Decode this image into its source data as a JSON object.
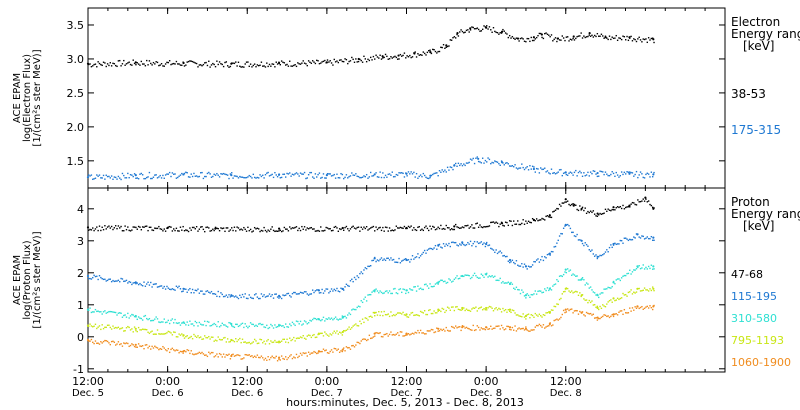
{
  "chart_data": [
    {
      "type": "scatter",
      "panel": "electron",
      "ylabel_lines": [
        "ACE EPAM",
        "log(Electron Flux)",
        "[1/(cm²s ster MeV)]"
      ],
      "ylim": [
        1.1,
        3.75
      ],
      "yticks": [
        "1.5",
        "2.0",
        "2.5",
        "3.0",
        "3.5"
      ],
      "ytick_values": [
        1.5,
        2.0,
        2.5,
        3.0,
        3.5
      ],
      "legend_title_lines": [
        "Electron",
        "Energy range",
        "[keV]"
      ],
      "series": [
        {
          "name": "38-53",
          "color": "#000000",
          "x": [
            0.0,
            0.3,
            0.6,
            0.9,
            1.2,
            1.5,
            1.7,
            1.85,
            1.95,
            2.05,
            2.15,
            2.25,
            2.32,
            2.4,
            2.5,
            2.6,
            2.7,
            2.8,
            2.85,
            2.95,
            3.05,
            3.15,
            3.25,
            3.4,
            3.55
          ],
          "y": [
            2.93,
            2.95,
            2.94,
            2.93,
            2.94,
            2.95,
            3.0,
            3.04,
            3.05,
            3.08,
            3.1,
            3.2,
            3.38,
            3.45,
            3.46,
            3.4,
            3.3,
            3.32,
            3.36,
            3.3,
            3.33,
            3.38,
            3.32,
            3.32,
            3.29
          ]
        },
        {
          "name": "175-315",
          "color": "#1e78d2",
          "x": [
            0.0,
            0.3,
            0.6,
            0.9,
            1.2,
            1.5,
            1.8,
            2.0,
            2.15,
            2.3,
            2.45,
            2.6,
            2.8,
            3.0,
            3.2,
            3.4,
            3.55
          ],
          "y": [
            1.26,
            1.29,
            1.3,
            1.29,
            1.3,
            1.29,
            1.3,
            1.31,
            1.28,
            1.43,
            1.53,
            1.48,
            1.38,
            1.33,
            1.32,
            1.31,
            1.3
          ]
        }
      ]
    },
    {
      "type": "scatter",
      "panel": "proton",
      "ylabel_lines": [
        "ACE EPAM",
        "log(Proton Flux)",
        "[1/(cm²s ster MeV)]"
      ],
      "ylim": [
        -1.1,
        4.65
      ],
      "yticks": [
        "-1",
        "0",
        "1",
        "2",
        "3",
        "4"
      ],
      "ytick_values": [
        -1,
        0,
        1,
        2,
        3,
        4
      ],
      "legend_title_lines": [
        "Proton",
        "Energy range",
        "[keV]"
      ],
      "series": [
        {
          "name": "47-68",
          "color": "#000000",
          "x": [
            0.0,
            0.5,
            0.8,
            1.2,
            1.6,
            2.0,
            2.3,
            2.6,
            2.8,
            2.9,
            3.0,
            3.05,
            3.1,
            3.2,
            3.3,
            3.4,
            3.5,
            3.55
          ],
          "y": [
            3.42,
            3.4,
            3.38,
            3.38,
            3.4,
            3.4,
            3.45,
            3.55,
            3.65,
            3.8,
            4.3,
            4.1,
            4.0,
            3.85,
            4.05,
            4.1,
            4.35,
            4.0
          ]
        },
        {
          "name": "115-195",
          "color": "#1e78d2",
          "x": [
            0.0,
            0.3,
            0.6,
            0.9,
            1.2,
            1.45,
            1.6,
            1.8,
            2.0,
            2.2,
            2.35,
            2.5,
            2.65,
            2.75,
            2.9,
            3.0,
            3.1,
            3.2,
            3.3,
            3.45,
            3.55
          ],
          "y": [
            1.9,
            1.7,
            1.5,
            1.3,
            1.28,
            1.45,
            1.5,
            2.45,
            2.4,
            2.85,
            2.95,
            2.9,
            2.4,
            2.2,
            2.6,
            3.5,
            3.0,
            2.5,
            2.9,
            3.2,
            3.1
          ]
        },
        {
          "name": "310-580",
          "color": "#2ee0d2",
          "x": [
            0.0,
            0.3,
            0.6,
            0.9,
            1.2,
            1.45,
            1.6,
            1.8,
            2.0,
            2.2,
            2.35,
            2.5,
            2.65,
            2.75,
            2.9,
            3.0,
            3.1,
            3.2,
            3.3,
            3.45,
            3.55
          ],
          "y": [
            0.85,
            0.65,
            0.45,
            0.4,
            0.35,
            0.55,
            0.6,
            1.45,
            1.45,
            1.7,
            1.9,
            1.95,
            1.65,
            1.3,
            1.5,
            2.1,
            1.8,
            1.3,
            1.7,
            2.2,
            2.2
          ]
        },
        {
          "name": "795-1193",
          "color": "#c8e614",
          "x": [
            0.0,
            0.3,
            0.6,
            0.9,
            1.2,
            1.45,
            1.6,
            1.8,
            2.0,
            2.2,
            2.35,
            2.5,
            2.65,
            2.75,
            2.9,
            3.0,
            3.1,
            3.2,
            3.3,
            3.45,
            3.55
          ],
          "y": [
            0.35,
            0.25,
            0.05,
            -0.1,
            -0.15,
            0.1,
            0.15,
            0.75,
            0.7,
            0.85,
            0.9,
            0.9,
            0.85,
            0.65,
            0.75,
            1.5,
            1.3,
            0.9,
            1.2,
            1.5,
            1.5
          ]
        },
        {
          "name": "1060-1900",
          "color": "#f08c1e",
          "x": [
            0.0,
            0.3,
            0.6,
            0.9,
            1.2,
            1.45,
            1.6,
            1.8,
            2.0,
            2.2,
            2.35,
            2.5,
            2.65,
            2.75,
            2.9,
            3.0,
            3.1,
            3.2,
            3.3,
            3.45,
            3.55
          ],
          "y": [
            -0.1,
            -0.25,
            -0.45,
            -0.6,
            -0.65,
            -0.45,
            -0.4,
            0.1,
            0.1,
            0.25,
            0.3,
            0.3,
            0.3,
            0.25,
            0.4,
            0.85,
            0.75,
            0.6,
            0.7,
            0.95,
            0.95
          ]
        }
      ]
    }
  ],
  "x_axis": {
    "xlim": [
      0.0,
      4.0
    ],
    "ticks": [
      {
        "x": 0.0,
        "time": "12:00",
        "date": "Dec. 5"
      },
      {
        "x": 0.5,
        "time": "0:00",
        "date": "Dec. 6"
      },
      {
        "x": 1.0,
        "time": "12:00",
        "date": "Dec. 6"
      },
      {
        "x": 1.5,
        "time": "0:00",
        "date": "Dec. 7"
      },
      {
        "x": 2.0,
        "time": "12:00",
        "date": "Dec. 7"
      },
      {
        "x": 2.5,
        "time": "0:00",
        "date": "Dec. 8"
      },
      {
        "x": 3.0,
        "time": "12:00",
        "date": "Dec. 8"
      }
    ],
    "xlabel": "hours:minutes, Dec.  5, 2013 - Dec.  8, 2013"
  }
}
